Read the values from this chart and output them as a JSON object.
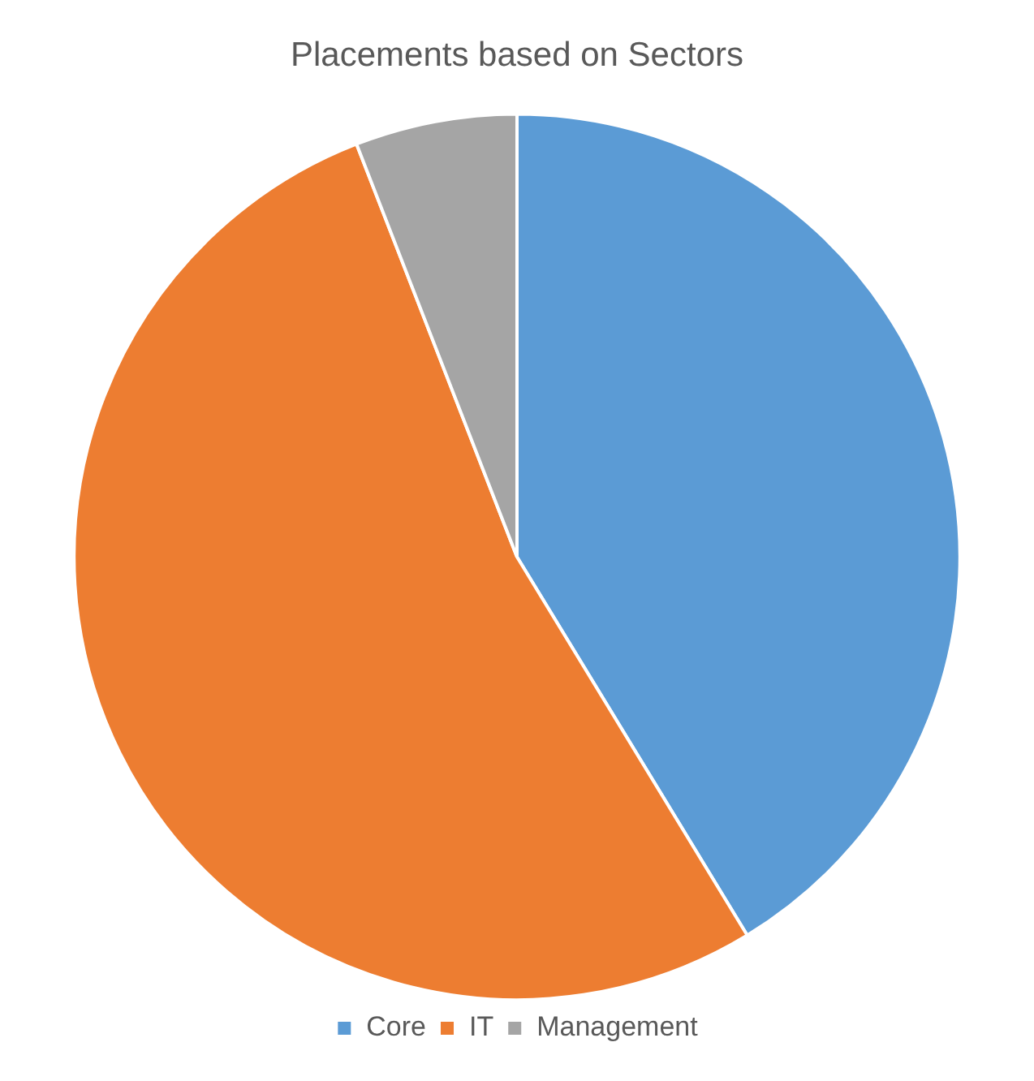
{
  "chart_data": {
    "type": "pie",
    "title": "Placements based on Sectors",
    "categories": [
      "Core",
      "IT",
      "Management"
    ],
    "values": [
      41.3,
      52.8,
      5.9
    ],
    "colors": [
      "#5b9bd5",
      "#ed7d31",
      "#a5a5a5"
    ],
    "legend": "bottom"
  }
}
